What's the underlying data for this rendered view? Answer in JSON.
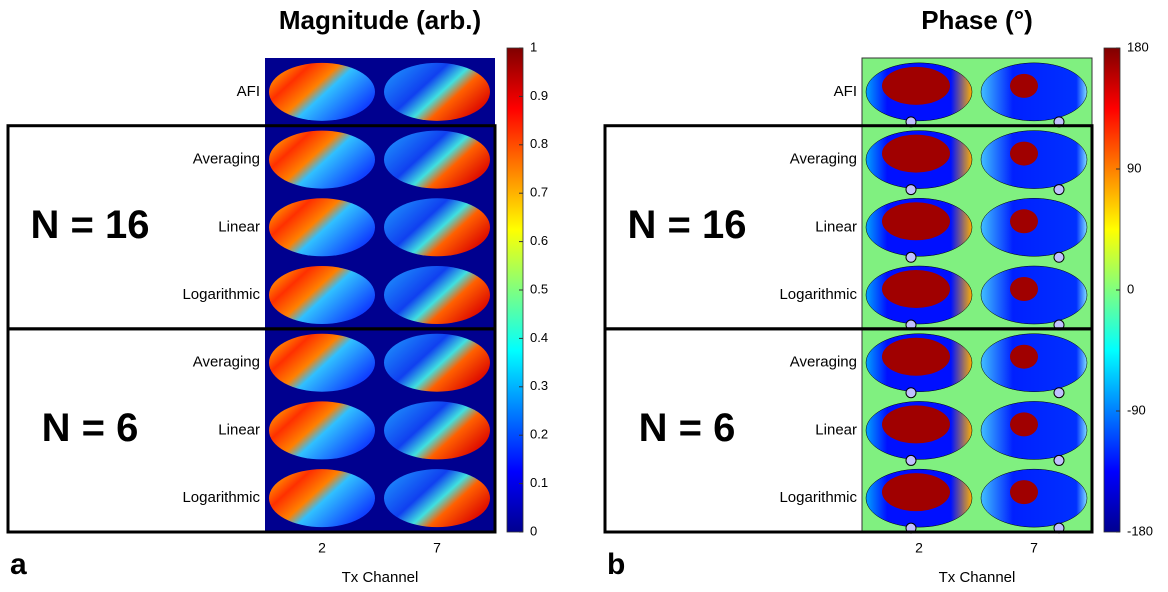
{
  "panels": [
    {
      "letter": "a",
      "title": "Magnitude (arb.)",
      "kind": "magnitude",
      "colorbar": {
        "lim": [
          0,
          1
        ],
        "ticks": [
          0,
          0.1,
          0.2,
          0.3,
          0.4,
          0.5,
          0.6,
          0.7,
          0.8,
          0.9,
          1
        ]
      },
      "x_ticks": [
        "2",
        "7"
      ],
      "x_label": "Tx Channel"
    },
    {
      "letter": "b",
      "title": "Phase (°)",
      "kind": "phase",
      "colorbar": {
        "lim": [
          -180,
          180
        ],
        "ticks": [
          -180,
          -90,
          0,
          90,
          180
        ]
      },
      "x_ticks": [
        "2",
        "7"
      ],
      "x_label": "Tx Channel"
    }
  ],
  "rows": [
    "AFI",
    "Averaging",
    "Linear",
    "Logarithmic",
    "Averaging",
    "Linear",
    "Logarithmic"
  ],
  "groups": [
    {
      "label": "N = 16"
    },
    {
      "label": "N = 6"
    }
  ]
}
